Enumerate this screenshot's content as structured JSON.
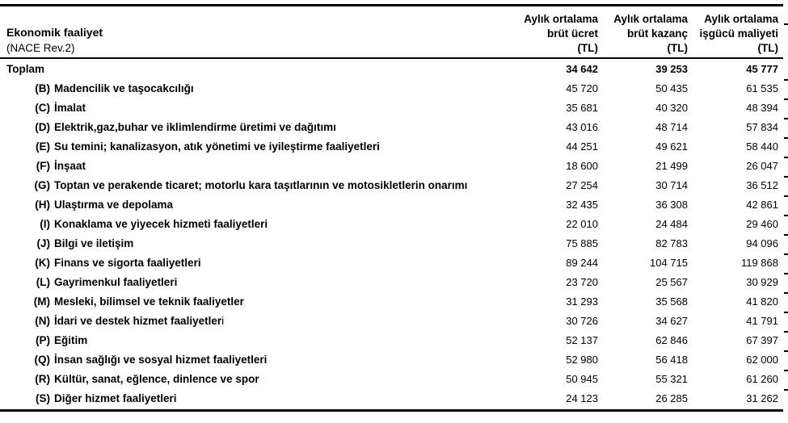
{
  "table": {
    "left_header": {
      "title": "Ekonomik faaliyet",
      "subtitle": "(NACE Rev.2)"
    },
    "columns": [
      {
        "line1": "Aylık ortalama",
        "line2": "brüt ücret",
        "line3": "(TL)"
      },
      {
        "line1": "Aylık ortalama",
        "line2": "brüt kazanç",
        "line3": "(TL)"
      },
      {
        "line1": "Aylık ortalama",
        "line2": "işgücü maliyeti",
        "line3": "(TL)"
      }
    ],
    "rows": [
      {
        "code": "",
        "label": "Toplam",
        "bold_values": true,
        "values": [
          "34 642",
          "39 253",
          "45 777"
        ]
      },
      {
        "code": "(B)",
        "label": "Madencilik ve taşocakcılığı",
        "values": [
          "45 720",
          "50 435",
          "61 535"
        ]
      },
      {
        "code": "(C)",
        "label": "İmalat",
        "values": [
          "35 681",
          "40 320",
          "48 394"
        ]
      },
      {
        "code": "(D)",
        "label": "Elektrik,gaz,buhar ve iklimlendirme üretimi ve dağıtımı",
        "values": [
          "43 016",
          "48 714",
          "57 834"
        ]
      },
      {
        "code": "(E)",
        "label": "Su temini; kanalizasyon, atık yönetimi ve iyileştirme faaliyetleri",
        "values": [
          "44 251",
          "49 621",
          "58 440"
        ]
      },
      {
        "code": "(F)",
        "label": "İnşaat",
        "values": [
          "18 600",
          "21 499",
          "26 047"
        ]
      },
      {
        "code": "(G)",
        "label": "Toptan ve perakende ticaret; motorlu kara taşıtlarının ve motosikletlerin onarımı",
        "values": [
          "27 254",
          "30 714",
          "36 512"
        ]
      },
      {
        "code": "(H)",
        "label": "Ulaştırma ve depolama",
        "values": [
          "32 435",
          "36 308",
          "42 861"
        ]
      },
      {
        "code": "(I)",
        "label": "Konaklama ve yiyecek hizmeti faaliyetleri",
        "values": [
          "22 010",
          "24 484",
          "29 460"
        ]
      },
      {
        "code": "(J)",
        "label": "Bilgi ve iletişim",
        "values": [
          "75 885",
          "82 783",
          "94 096"
        ]
      },
      {
        "code": "(K)",
        "label": "Finans ve sigorta faaliyetleri",
        "values": [
          "89 244",
          "104 715",
          "119 868"
        ]
      },
      {
        "code": "(L)",
        "label": "Gayrimenkul faaliyetleri",
        "values": [
          "23 720",
          "25 567",
          "30 929"
        ]
      },
      {
        "code": "(M)",
        "label": "Mesleki, bilimsel ve teknik faaliyetler",
        "values": [
          "31 293",
          "35 568",
          "41 820"
        ]
      },
      {
        "code": "(N)",
        "label": "İdari ve destek hizmet faaliyetler",
        "label_tail": "i",
        "values": [
          "30 726",
          "34 627",
          "41 791"
        ]
      },
      {
        "code": "(P)",
        "label": "Eğitim",
        "values": [
          "52 137",
          "62 846",
          "67 397"
        ]
      },
      {
        "code": "(Q)",
        "label": "İnsan sağlığı ve sosyal hizmet faaliyetleri",
        "values": [
          "52 980",
          "56 418",
          "62 000"
        ]
      },
      {
        "code": "(R)",
        "label": "Kültür, sanat, eğlence, dinlence ve spor",
        "values": [
          "50 945",
          "55 321",
          "61 260"
        ]
      },
      {
        "code": "(S)",
        "label": "Diğer hizmet faaliyetleri",
        "values": [
          "24 123",
          "26 285",
          "31 262"
        ]
      }
    ]
  }
}
